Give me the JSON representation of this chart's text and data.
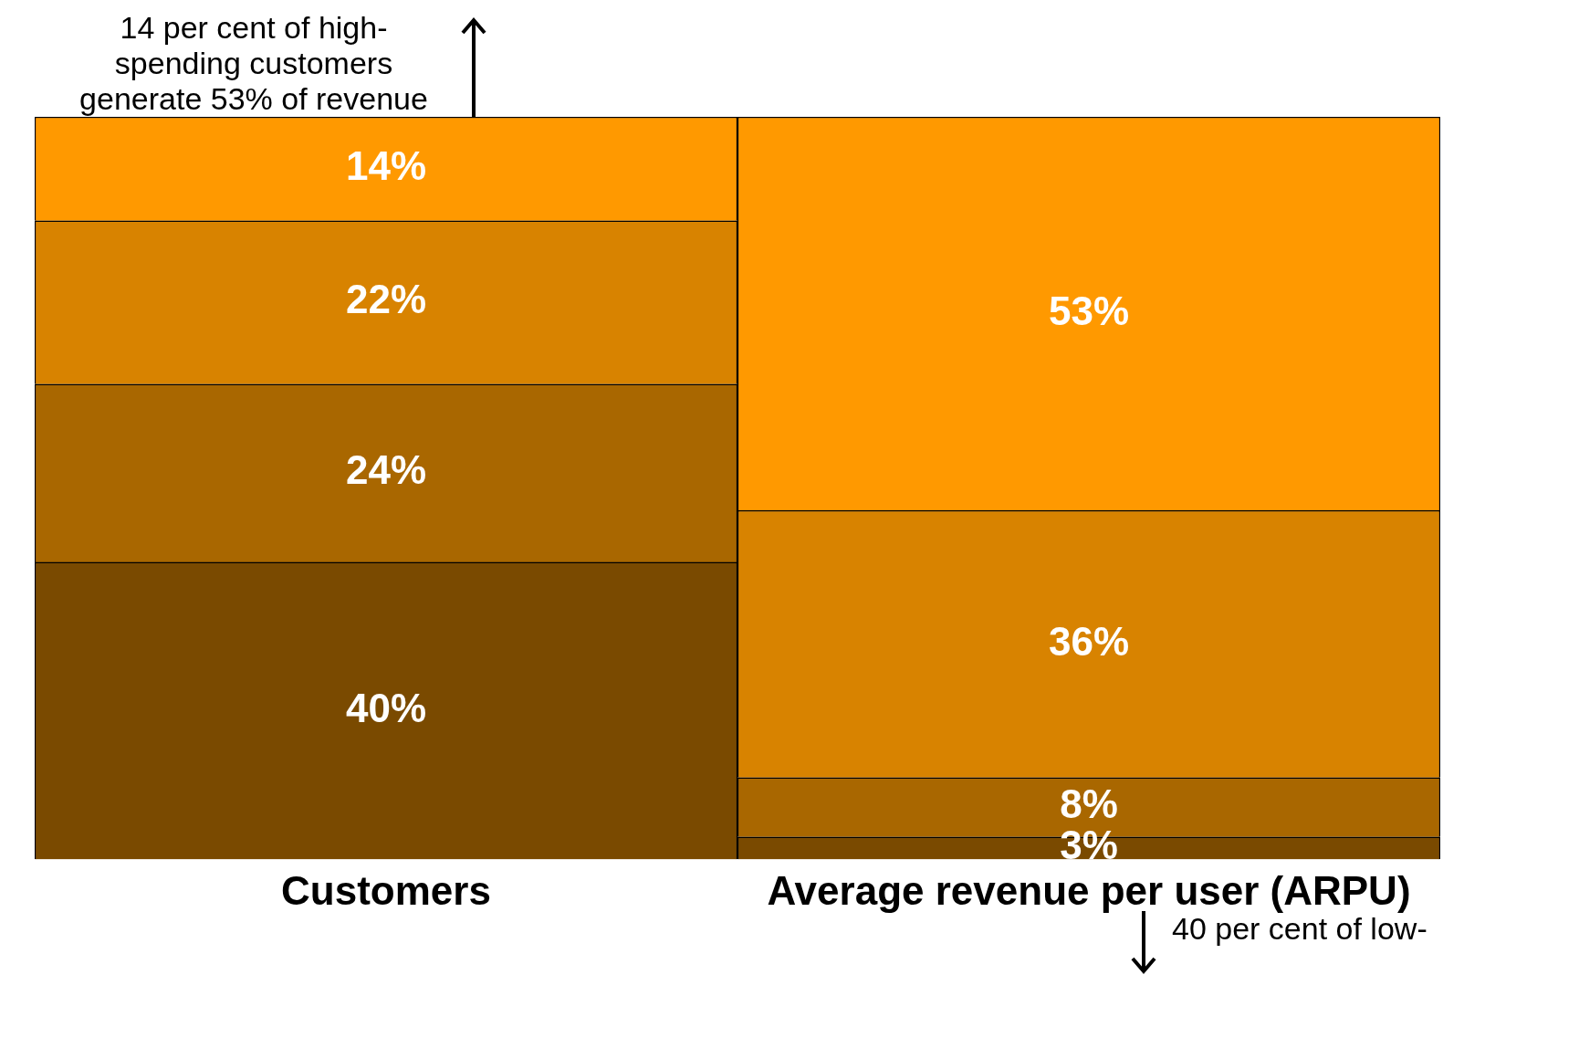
{
  "chart_data": {
    "type": "bar",
    "stacked": true,
    "tick_labels": "x",
    "categories": [
      "Customers",
      "Average revenue per user (ARPU)"
    ],
    "series": [
      {
        "color": "#7a4a00",
        "values": [
          40,
          3
        ],
        "value_labels": [
          "40%",
          "3%"
        ]
      },
      {
        "color": "#a96700",
        "values": [
          24,
          8
        ],
        "value_labels": [
          "24%",
          "8%"
        ]
      },
      {
        "color": "#d88300",
        "values": [
          22,
          36
        ],
        "value_labels": [
          "22%",
          "36%"
        ]
      },
      {
        "color": "#ff9900",
        "values": [
          14,
          53
        ],
        "value_labels": [
          "14%",
          "53%"
        ]
      }
    ],
    "annotations": [
      "14 per cent of high-spending customers generate 53% of revenue",
      "40 per cent of low-"
    ]
  }
}
